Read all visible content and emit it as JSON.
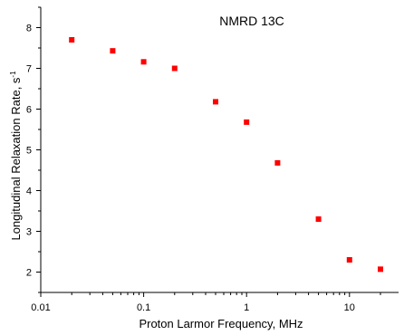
{
  "chart_data": {
    "type": "scatter",
    "title": "NMRD 13C",
    "xlabel": "Proton Larmor Frequency, MHz",
    "ylabel": "Longitudinal Relaxation Rate, s",
    "ylabel_superscript": "-1",
    "x_scale": "log",
    "xlim": [
      0.01,
      30
    ],
    "ylim": [
      1.5,
      8.5
    ],
    "x_ticks": [
      {
        "value": 0.01,
        "label": "0.01"
      },
      {
        "value": 0.1,
        "label": "0.1"
      },
      {
        "value": 1,
        "label": "1"
      },
      {
        "value": 10,
        "label": "10"
      }
    ],
    "y_ticks": [
      {
        "value": 2,
        "label": "2"
      },
      {
        "value": 3,
        "label": "3"
      },
      {
        "value": 4,
        "label": "4"
      },
      {
        "value": 5,
        "label": "5"
      },
      {
        "value": 6,
        "label": "6"
      },
      {
        "value": 7,
        "label": "7"
      },
      {
        "value": 8,
        "label": "8"
      }
    ],
    "grid": false,
    "marker": "square",
    "marker_color": "#ff0000",
    "points": [
      {
        "x": 0.02,
        "y": 7.7
      },
      {
        "x": 0.05,
        "y": 7.43
      },
      {
        "x": 0.1,
        "y": 7.16
      },
      {
        "x": 0.2,
        "y": 7.0
      },
      {
        "x": 0.5,
        "y": 6.18
      },
      {
        "x": 1,
        "y": 5.68
      },
      {
        "x": 2,
        "y": 4.68
      },
      {
        "x": 5,
        "y": 3.3
      },
      {
        "x": 10,
        "y": 2.3
      },
      {
        "x": 20,
        "y": 2.07
      }
    ]
  }
}
